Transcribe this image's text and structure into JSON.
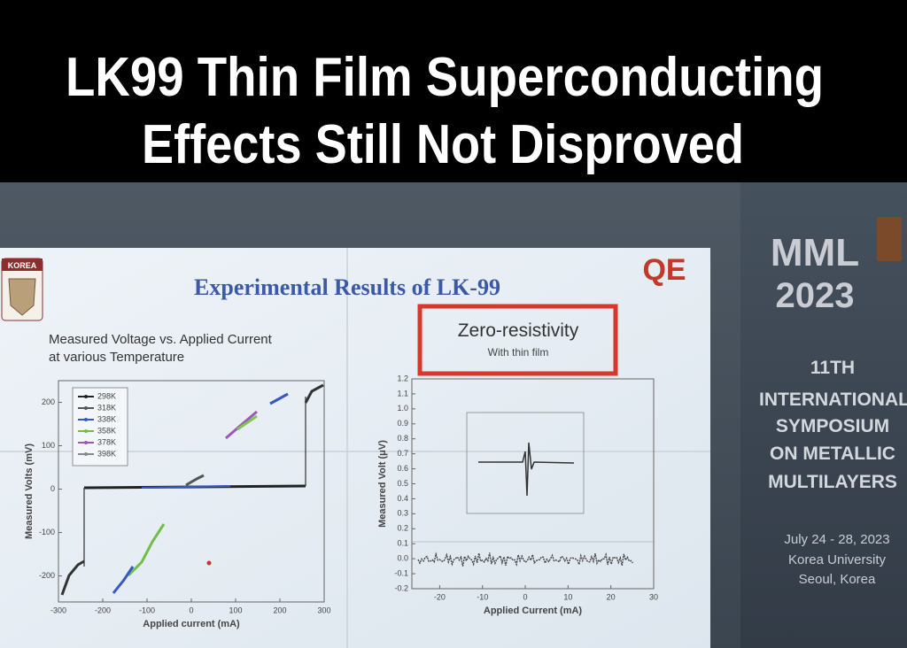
{
  "headline": [
    "LK99 Thin Film Superconducting",
    "Effects Still Not Disproved"
  ],
  "slide": {
    "logo_left": "KOREA",
    "logo_right": "QE",
    "title": "Experimental Results of LK-99",
    "left_plot": {
      "subtitle": [
        "Measured Voltage vs. Applied Current",
        "at various Temperature"
      ],
      "xlabel": "Applied current (mA)",
      "ylabel": "Measured Volts (mV)",
      "legend": [
        "298K",
        "318K",
        "338K",
        "358K",
        "378K",
        "398K"
      ],
      "legend_colors": [
        "#222222",
        "#555555",
        "#3557c8",
        "#6fbf4a",
        "#9b59b6",
        "#888888"
      ],
      "xlim": [
        -300,
        300
      ],
      "ylim": [
        -260,
        250
      ],
      "xticks": [
        -300,
        -200,
        -100,
        0,
        100,
        200,
        300
      ],
      "yticks": [
        -200,
        -100,
        0,
        100,
        200
      ]
    },
    "right_plot": {
      "heading": "Zero-resistivity",
      "subheading": "With thin film",
      "xlabel": "Applied Current (mA)",
      "ylabel": "Measured Volt (μV)",
      "xlim": [
        -26.5,
        30
      ],
      "ylim": [
        -0.2,
        1.2
      ],
      "xticks": [
        -20,
        -10,
        0,
        10,
        20,
        30
      ],
      "yticks": [
        -0.2,
        -0.1,
        {
          "value": 0,
          "label": "0.0"
        },
        0.1,
        0.2,
        0.3,
        0.4,
        0.5,
        0.6,
        0.7,
        0.8,
        0.9,
        {
          "value": 1,
          "label": "1.0"
        },
        1.1,
        1.2
      ]
    }
  },
  "banner": {
    "event": "MML",
    "year": "2023",
    "lines": [
      "11TH",
      "INTERNATIONAL",
      "SYMPOSIUM",
      "ON METALLIC",
      "MULTILAYERS"
    ],
    "date": "July 24 - 28, 2023",
    "place": [
      "Korea University",
      "Seoul, Korea"
    ]
  }
}
